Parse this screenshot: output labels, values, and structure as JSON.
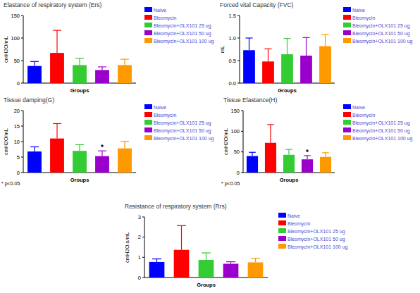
{
  "chart_data": [
    {
      "type": "bar",
      "title": "Elastance of respiratory system (Ers)",
      "x_label": "Groups",
      "y_label": "cmH2O/mL",
      "categories": [
        null
      ],
      "ylim": [
        0,
        150
      ],
      "yticks": [
        0,
        50,
        100,
        150
      ],
      "legend": "right",
      "tick_labels": "y",
      "series": [
        {
          "name": "Naive",
          "color": "#0000ff",
          "values": [
            38
          ],
          "errors": [
            10
          ]
        },
        {
          "name": "Bleomycin",
          "color": "#ff0000",
          "values": [
            67
          ],
          "errors": [
            50
          ]
        },
        {
          "name": "Bleomycin+OLX101 25 ug",
          "color": "#33cc33",
          "values": [
            40
          ],
          "errors": [
            15
          ]
        },
        {
          "name": "Bleomycin+OLX101 50 ug",
          "color": "#9900cc",
          "values": [
            29
          ],
          "errors": [
            7
          ]
        },
        {
          "name": "Bleomycin+OLX101 100 ug",
          "color": "#ff9900",
          "values": [
            40
          ],
          "errors": [
            13
          ]
        }
      ]
    },
    {
      "type": "bar",
      "title": "Forced vital Capacity (FVC)",
      "x_label": "Groups",
      "y_label": "mL",
      "categories": [
        null
      ],
      "ylim": [
        0,
        1.5
      ],
      "yticks": [
        {
          "value": 0,
          "label": "0.0"
        },
        {
          "value": 0.5,
          "label": "0.5"
        },
        {
          "value": 1,
          "label": "1.0"
        },
        {
          "value": 1.5,
          "label": "1.5"
        }
      ],
      "legend": "right",
      "tick_labels": "y",
      "series": [
        {
          "name": "Naive",
          "color": "#0000ff",
          "values": [
            0.73
          ],
          "errors": [
            0.27
          ]
        },
        {
          "name": "Bleomycin",
          "color": "#ff0000",
          "values": [
            0.48
          ],
          "errors": [
            0.28
          ]
        },
        {
          "name": "Bleomycin+OLX101 25 ug",
          "color": "#33cc33",
          "values": [
            0.64
          ],
          "errors": [
            0.35
          ]
        },
        {
          "name": "Bleomycin+OLX101 50 ug",
          "color": "#9900cc",
          "values": [
            0.61
          ],
          "errors": [
            0.4
          ]
        },
        {
          "name": "Bleomycin+OLX101 100 ug",
          "color": "#ff9900",
          "values": [
            0.82
          ],
          "errors": [
            0.26
          ]
        }
      ]
    },
    {
      "type": "bar",
      "title": "Tissue damping(G)",
      "x_label": "Groups",
      "y_label": "cmH2O/mL",
      "note": "* p<0.05",
      "categories": [
        null
      ],
      "ylim": [
        0,
        20
      ],
      "yticks": [
        0,
        5,
        10,
        15,
        20
      ],
      "legend": "right",
      "tick_labels": "y",
      "annotations": [
        {
          "text": "*",
          "series": 3
        }
      ],
      "series": [
        {
          "name": "Naive",
          "color": "#0000ff",
          "values": [
            6.8
          ],
          "errors": [
            1.5
          ]
        },
        {
          "name": "Bleomycin",
          "color": "#ff0000",
          "values": [
            11
          ],
          "errors": [
            4.8
          ]
        },
        {
          "name": "Bleomycin+OLX101 25 ug",
          "color": "#33cc33",
          "values": [
            7
          ],
          "errors": [
            2
          ]
        },
        {
          "name": "Bleomycin+OLX101 50 ug",
          "color": "#9900cc",
          "values": [
            5.3
          ],
          "errors": [
            1.7
          ]
        },
        {
          "name": "Bleomycin+OLX101 100 ug",
          "color": "#ff9900",
          "values": [
            7.8
          ],
          "errors": [
            2.3
          ]
        }
      ]
    },
    {
      "type": "bar",
      "title": "Tissue Elastance(H)",
      "x_label": "Groups",
      "y_label": "cmH2O/mL",
      "note": "* p<0.05",
      "categories": [
        null
      ],
      "ylim": [
        0,
        150
      ],
      "yticks": [
        0,
        50,
        100,
        150
      ],
      "legend": "right",
      "tick_labels": "y",
      "annotations": [
        {
          "text": "*",
          "series": 3
        }
      ],
      "series": [
        {
          "name": "Naive",
          "color": "#0000ff",
          "values": [
            40
          ],
          "errors": [
            9
          ]
        },
        {
          "name": "Bleomycin",
          "color": "#ff0000",
          "values": [
            72
          ],
          "errors": [
            44
          ]
        },
        {
          "name": "Bleomycin+OLX101 25 ug",
          "color": "#33cc33",
          "values": [
            43
          ],
          "errors": [
            13
          ]
        },
        {
          "name": "Bleomycin+OLX101 50 ug",
          "color": "#9900cc",
          "values": [
            32
          ],
          "errors": [
            9
          ]
        },
        {
          "name": "Bleomycin+OLX101 100 ug",
          "color": "#ff9900",
          "values": [
            38
          ],
          "errors": [
            10
          ]
        }
      ]
    },
    {
      "type": "bar",
      "title": "Resistance of respiratory system (Rrs)",
      "x_label": "Groups",
      "y_label": "cmH2O.s/mL",
      "categories": [
        null
      ],
      "ylim": [
        0,
        3
      ],
      "yticks": [
        0,
        1,
        2,
        3
      ],
      "legend": "right",
      "tick_labels": "y",
      "series": [
        {
          "name": "Naive",
          "color": "#0000ff",
          "values": [
            0.77
          ],
          "errors": [
            0.15
          ]
        },
        {
          "name": "Bleomycin",
          "color": "#ff0000",
          "values": [
            1.37
          ],
          "errors": [
            1.2
          ]
        },
        {
          "name": "Bleomycin+OLX101 25 ug",
          "color": "#33cc33",
          "values": [
            0.87
          ],
          "errors": [
            0.35
          ]
        },
        {
          "name": "Bleomycin+OLX101 50 ug",
          "color": "#9900cc",
          "values": [
            0.68
          ],
          "errors": [
            0.1
          ]
        },
        {
          "name": "Bleomycin+OLX101 100 ug",
          "color": "#ff9900",
          "values": [
            0.75
          ],
          "errors": [
            0.2
          ]
        }
      ]
    }
  ]
}
